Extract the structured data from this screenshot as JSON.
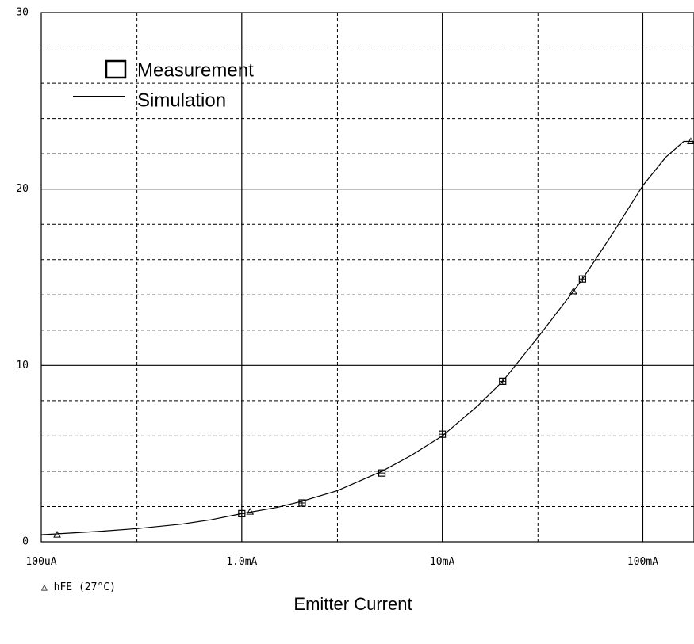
{
  "chart_data": {
    "type": "line",
    "xscale": "log",
    "x_unit": "A",
    "xlim": [
      0.0001,
      0.18
    ],
    "ylim": [
      0,
      30
    ],
    "x_ticks": [
      {
        "value": 0.0001,
        "label": "100uA"
      },
      {
        "value": 0.001,
        "label": "1.0mA"
      },
      {
        "value": 0.01,
        "label": "10mA"
      },
      {
        "value": 0.1,
        "label": "100mA"
      }
    ],
    "y_ticks": [
      {
        "value": 0,
        "label": "0"
      },
      {
        "value": 10,
        "label": "10"
      },
      {
        "value": 20,
        "label": "20"
      },
      {
        "value": 30,
        "label": "30"
      }
    ],
    "grid": true,
    "xlabel": "Emitter Current",
    "trace_label": "△ hFE (27°C)",
    "legend": {
      "position": "top-left",
      "entries": [
        {
          "marker": "square",
          "label": "Measurement"
        },
        {
          "marker": "line",
          "label": "Simulation"
        }
      ]
    },
    "series": [
      {
        "name": "Simulation",
        "style": "line",
        "color": "#000000",
        "x": [
          0.0001,
          0.0002,
          0.0003,
          0.0005,
          0.0007,
          0.001,
          0.0015,
          0.002,
          0.003,
          0.005,
          0.007,
          0.01,
          0.015,
          0.02,
          0.03,
          0.045,
          0.05,
          0.07,
          0.1,
          0.13,
          0.16,
          0.18
        ],
        "y": [
          0.4,
          0.6,
          0.75,
          1.0,
          1.25,
          1.6,
          1.95,
          2.3,
          2.9,
          4.0,
          4.9,
          6.0,
          7.7,
          9.1,
          11.6,
          14.2,
          14.9,
          17.4,
          20.2,
          21.8,
          22.7,
          22.7
        ]
      },
      {
        "name": "Measurement",
        "style": "markers",
        "marker": "square",
        "x": [
          0.001,
          0.002,
          0.005,
          0.01,
          0.02,
          0.05
        ],
        "y": [
          1.6,
          2.2,
          3.9,
          6.1,
          9.1,
          14.9
        ]
      },
      {
        "name": "Simulation markers",
        "style": "markers",
        "marker": "triangle",
        "x": [
          0.00012,
          0.0011,
          0.045,
          0.18
        ],
        "y": [
          0.4,
          1.7,
          14.2,
          22.7
        ]
      }
    ]
  }
}
